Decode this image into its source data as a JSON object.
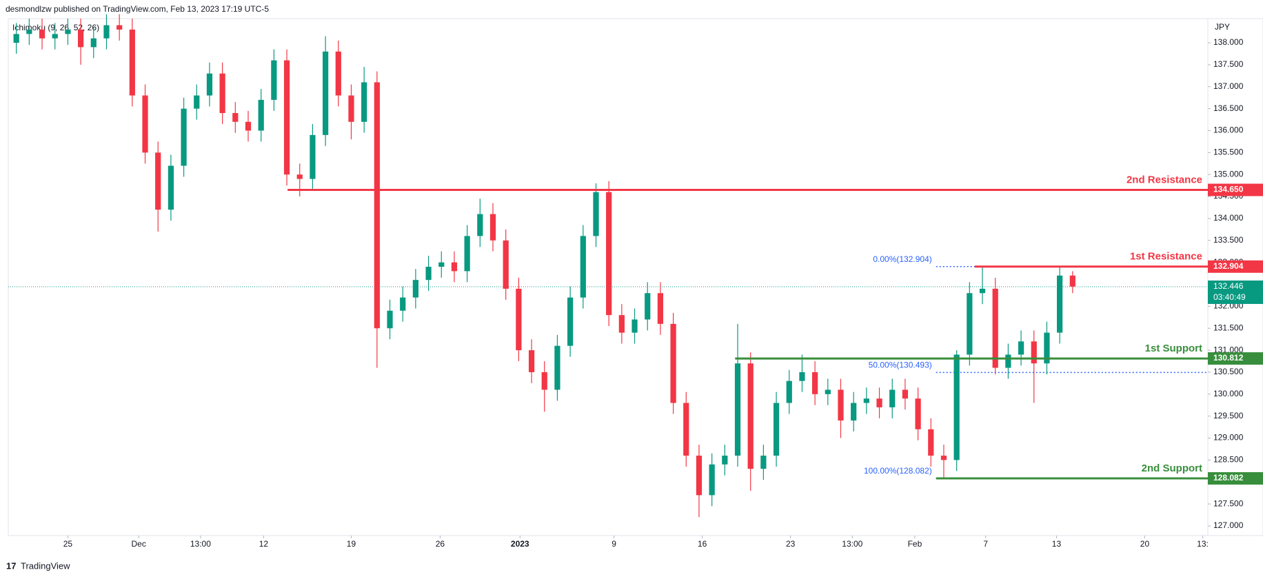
{
  "chart_data": {
    "type": "candlestick",
    "attribution": "desmondlzw published on TradingView.com, Feb 13, 2023 17:19 UTC-5",
    "indicator": "Ichimoku (9, 26, 52, 26)",
    "currency": "JPY",
    "footer": "TradingView",
    "up_color": "#089981",
    "down_color": "#f23645",
    "x": [
      0,
      1,
      2,
      3,
      4,
      5,
      6,
      7,
      8,
      9,
      10,
      11,
      12,
      13,
      14,
      15,
      16,
      17,
      18,
      19,
      20,
      21,
      22,
      23,
      24,
      25,
      26,
      27,
      28,
      29,
      30,
      31,
      32,
      33,
      34,
      35,
      36,
      37,
      38,
      39,
      40,
      41,
      42,
      43,
      44,
      45,
      46,
      47,
      48,
      49,
      50,
      51,
      52,
      53,
      54,
      55,
      56,
      57,
      58,
      59,
      60,
      61,
      62,
      63,
      64,
      65,
      66,
      67,
      68,
      69,
      70,
      71,
      72,
      73,
      74,
      75,
      76,
      77,
      78,
      79,
      80,
      81,
      82
    ],
    "open": [
      138.0,
      138.2,
      138.3,
      138.1,
      138.2,
      138.3,
      137.9,
      138.1,
      138.4,
      138.3,
      136.8,
      135.5,
      134.2,
      135.2,
      136.5,
      136.8,
      137.3,
      136.4,
      136.2,
      136.0,
      136.7,
      137.6,
      135.0,
      134.9,
      135.9,
      137.8,
      136.8,
      136.2,
      137.1,
      131.5,
      131.9,
      132.2,
      132.6,
      132.9,
      133.0,
      132.8,
      133.6,
      134.1,
      133.5,
      132.4,
      131.0,
      130.5,
      130.1,
      131.1,
      132.2,
      133.6,
      134.6,
      131.8,
      131.4,
      131.7,
      132.3,
      131.6,
      129.8,
      128.6,
      127.7,
      128.4,
      128.6,
      130.7,
      128.3,
      128.6,
      129.8,
      130.3,
      130.5,
      130.0,
      130.1,
      129.4,
      129.8,
      129.9,
      129.7,
      130.1,
      129.9,
      129.2,
      128.6,
      128.5,
      130.9,
      132.3,
      132.4,
      130.6,
      130.9,
      131.2,
      130.7,
      131.4,
      132.7
    ],
    "high": [
      138.45,
      138.55,
      138.55,
      138.45,
      138.55,
      138.55,
      138.35,
      138.65,
      138.65,
      138.55,
      137.05,
      135.75,
      135.45,
      136.75,
      137.05,
      137.55,
      137.55,
      136.65,
      136.45,
      136.95,
      137.85,
      137.85,
      135.25,
      136.15,
      138.15,
      138.05,
      137.05,
      137.45,
      137.35,
      132.15,
      132.45,
      132.85,
      133.15,
      133.25,
      133.25,
      133.85,
      134.45,
      134.35,
      133.75,
      132.65,
      131.25,
      130.75,
      131.35,
      132.45,
      133.85,
      134.8,
      134.85,
      132.05,
      131.95,
      132.55,
      132.55,
      131.85,
      130.05,
      128.85,
      128.65,
      128.85,
      131.6,
      130.95,
      128.85,
      130.05,
      130.55,
      130.9,
      130.75,
      130.35,
      130.35,
      130.05,
      130.15,
      130.15,
      130.35,
      130.35,
      130.15,
      129.45,
      128.85,
      131.0,
      132.55,
      132.9,
      132.65,
      131.15,
      131.45,
      131.45,
      131.65,
      132.9,
      132.8
    ],
    "low": [
      137.75,
      137.95,
      137.85,
      137.85,
      137.95,
      137.5,
      137.65,
      137.85,
      138.05,
      136.55,
      135.25,
      133.7,
      133.95,
      134.95,
      136.25,
      136.55,
      136.15,
      135.95,
      135.75,
      135.75,
      136.45,
      134.75,
      134.5,
      134.65,
      135.65,
      136.55,
      135.8,
      135.95,
      130.6,
      131.25,
      131.65,
      131.95,
      132.35,
      132.65,
      132.55,
      132.55,
      133.35,
      133.25,
      132.15,
      130.75,
      130.25,
      129.6,
      129.85,
      130.85,
      131.95,
      133.35,
      131.55,
      131.15,
      131.15,
      131.45,
      131.35,
      129.55,
      128.35,
      127.2,
      127.45,
      128.15,
      128.35,
      127.8,
      128.05,
      128.35,
      129.55,
      130.05,
      129.75,
      129.75,
      129.0,
      129.15,
      129.55,
      129.45,
      129.45,
      129.65,
      128.95,
      128.35,
      128.08,
      128.25,
      130.65,
      132.05,
      130.45,
      130.35,
      130.65,
      129.8,
      130.45,
      131.15,
      132.3
    ],
    "close": [
      138.2,
      138.3,
      138.1,
      138.2,
      138.3,
      137.9,
      138.1,
      138.4,
      138.3,
      136.8,
      135.5,
      134.2,
      135.2,
      136.5,
      136.8,
      137.3,
      136.4,
      136.2,
      136.0,
      136.7,
      137.6,
      135.0,
      134.9,
      135.9,
      137.8,
      136.8,
      136.2,
      137.1,
      131.5,
      131.9,
      132.2,
      132.6,
      132.9,
      133.0,
      132.8,
      133.6,
      134.1,
      133.5,
      132.4,
      131.0,
      130.5,
      130.1,
      131.1,
      132.2,
      133.6,
      134.6,
      131.8,
      131.4,
      131.7,
      132.3,
      131.6,
      129.8,
      128.6,
      127.7,
      128.4,
      128.6,
      130.7,
      128.3,
      128.6,
      129.8,
      130.3,
      130.5,
      130.0,
      130.1,
      129.4,
      129.8,
      129.9,
      129.7,
      130.1,
      129.9,
      129.2,
      128.6,
      128.5,
      130.9,
      132.3,
      132.4,
      130.6,
      130.9,
      131.2,
      130.7,
      131.4,
      132.7,
      132.45
    ],
    "xlim": [
      -0.625,
      92.5
    ],
    "xticks": [
      {
        "value": 4,
        "label": "25"
      },
      {
        "value": 9.5,
        "label": "Dec"
      },
      {
        "value": 14.3,
        "label": "13:00"
      },
      {
        "value": 19.2,
        "label": "12"
      },
      {
        "value": 26,
        "label": "19"
      },
      {
        "value": 32.9,
        "label": "26"
      },
      {
        "value": 39.1,
        "label": "2023"
      },
      {
        "value": 46.4,
        "label": "9"
      },
      {
        "value": 53.25,
        "label": "16"
      },
      {
        "value": 60.1,
        "label": "23"
      },
      {
        "value": 64.9,
        "label": "13:00"
      },
      {
        "value": 69.75,
        "label": "Feb"
      },
      {
        "value": 75.25,
        "label": "7"
      },
      {
        "value": 80.75,
        "label": "13"
      },
      {
        "value": 87.6,
        "label": "20"
      },
      {
        "value": 92.1,
        "label": "13:"
      }
    ],
    "ylim": [
      126.78,
      138.55
    ],
    "yticks": [
      {
        "value": 127,
        "label": "127.000"
      },
      {
        "value": 127.5,
        "label": "127.500"
      },
      {
        "value": 128,
        "label": "128.000"
      },
      {
        "value": 128.5,
        "label": "128.500"
      },
      {
        "value": 129,
        "label": "129.000"
      },
      {
        "value": 129.5,
        "label": "129.500"
      },
      {
        "value": 130,
        "label": "130.000"
      },
      {
        "value": 130.5,
        "label": "130.500"
      },
      {
        "value": 131,
        "label": "131.000"
      },
      {
        "value": 131.5,
        "label": "131.500"
      },
      {
        "value": 132,
        "label": "132.000"
      },
      {
        "value": 132.5,
        "label": "132.500"
      },
      {
        "value": 133,
        "label": "133.000"
      },
      {
        "value": 133.5,
        "label": "133.500"
      },
      {
        "value": 134,
        "label": "134.000"
      },
      {
        "value": 134.5,
        "label": "134.500"
      },
      {
        "value": 135,
        "label": "135.000"
      },
      {
        "value": 135.5,
        "label": "135.500"
      },
      {
        "value": 136,
        "label": "136.000"
      },
      {
        "value": 136.5,
        "label": "136.500"
      },
      {
        "value": 137,
        "label": "137.000"
      },
      {
        "value": 137.5,
        "label": "137.500"
      },
      {
        "value": 138,
        "label": "138.000"
      }
    ],
    "levels": [
      {
        "name": "2nd Resistance",
        "value": 134.65,
        "value_label": "134.650",
        "x_start": 21.06,
        "color": "#f23645"
      },
      {
        "name": "1st Resistance",
        "value": 132.904,
        "value_label": "132.904",
        "x_start": 74.4,
        "color": "#f23645"
      },
      {
        "name": "1st Support",
        "value": 130.812,
        "value_label": "130.812",
        "x_start": 55.8,
        "color": "#388e3c"
      },
      {
        "name": "2nd Support",
        "value": 128.082,
        "value_label": "128.082",
        "x_start": 71.4,
        "color": "#388e3c"
      }
    ],
    "fib_levels": [
      {
        "label": "0.00%(132.904)",
        "value": 132.904,
        "x_start": 71.4
      },
      {
        "label": "50.00%(130.493)",
        "value": 130.493,
        "x_start": 71.4
      },
      {
        "label": "100.00%(128.082)",
        "value": 128.082,
        "x_start": 71.4
      }
    ],
    "fib_color": "#2962ff",
    "last_price": {
      "value": 132.446,
      "label": "132.446",
      "countdown": "03:40:49",
      "color": "#089981"
    }
  }
}
